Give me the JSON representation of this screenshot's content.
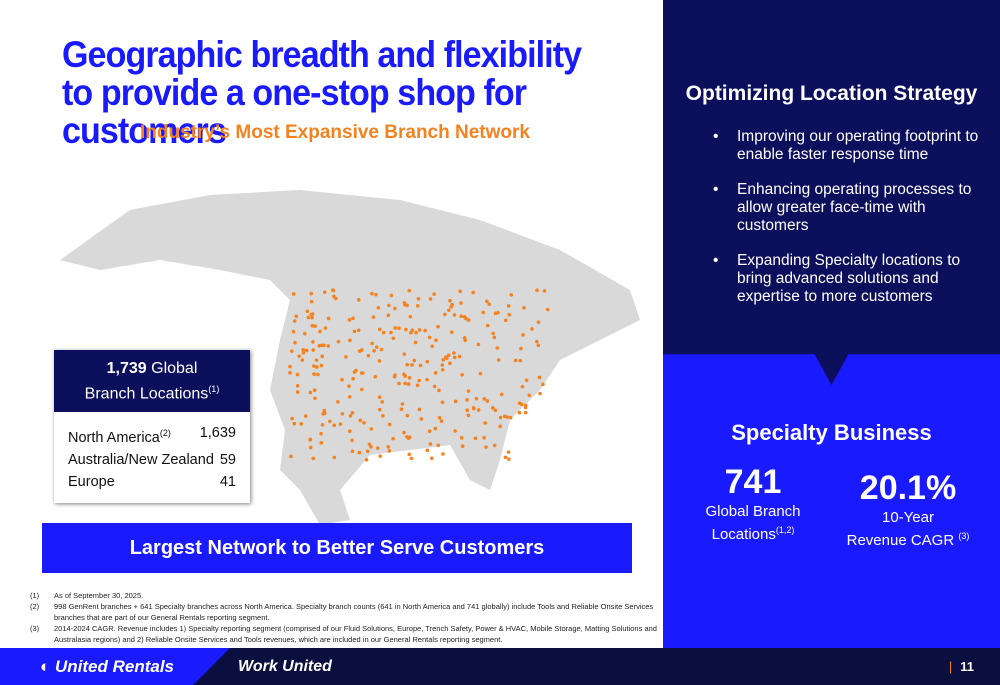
{
  "title": "Geographic breadth and flexibility to provide a one-stop shop for customers",
  "subtitle": "Industry’s Most Expansive Branch Network",
  "locations": {
    "total": "1,739",
    "total_label_1": "Global",
    "total_label_2": "Branch Locations",
    "total_sup": "(1)",
    "rows": [
      {
        "region": "North America",
        "sup": "(2)",
        "count": "1,639"
      },
      {
        "region": "Australia/New Zealand",
        "sup": "",
        "count": "59"
      },
      {
        "region": "Europe",
        "sup": "",
        "count": "41"
      }
    ]
  },
  "banner": "Largest Network to Better Serve Customers",
  "footnotes": [
    {
      "n": "(1)",
      "text": "As of September 30, 2025."
    },
    {
      "n": "(2)",
      "text": "998 GenRent branches + 641 Specialty branches across North America.  Specialty branch counts (641 in North America and 741 globally) include Tools and Reliable Onsite Services branches that are part of our General Rentals reporting segment."
    },
    {
      "n": "(3)",
      "text": "2014-2024 CAGR. Revenue includes 1) Specialty reporting segment (comprised of our Fluid Solutions, Europe, Trench Safety, Power & HVAC, Mobile Storage, Matting Solutions and Australasia regions) and 2) Reliable Onsite Services and Tools revenues, which are included in our General Rentals reporting segment."
    }
  ],
  "strategy": {
    "title": "Optimizing Location Strategy",
    "bullets": [
      "Improving our operating footprint to enable faster response time",
      "Enhancing operating processes to allow greater face-time with customers",
      "Expanding Specialty locations to bring advanced solutions and expertise to more customers"
    ]
  },
  "specialty": {
    "title": "Specialty Business",
    "stat1": {
      "value": "741",
      "label1": "Global Branch",
      "label2": "Locations",
      "sup": "(1,2)"
    },
    "stat2": {
      "value": "20.1%",
      "label1": "10-Year",
      "label2": "Revenue CAGR",
      "sup": "(3)"
    }
  },
  "footer": {
    "logo": "United Rentals",
    "tagline": "Work United",
    "page": "11",
    "sep": "|"
  },
  "colors": {
    "navy": "#0b0f5c",
    "blue": "#1a1aff",
    "orange": "#f58220"
  }
}
